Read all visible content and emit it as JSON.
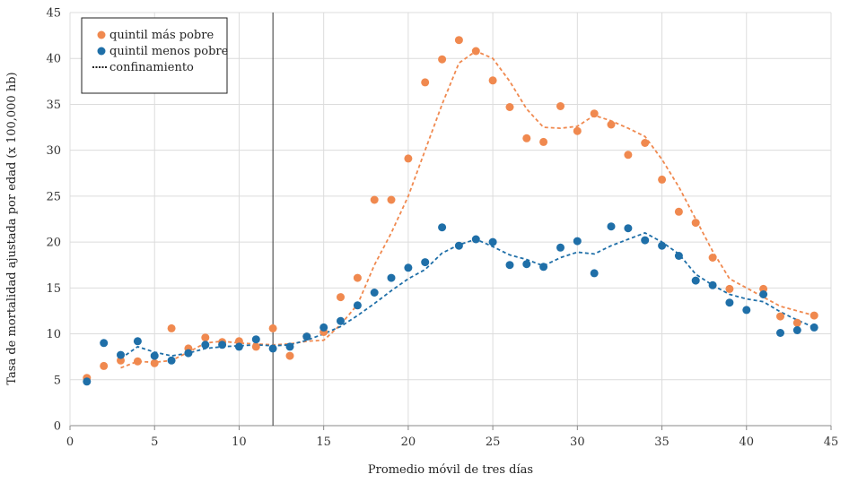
{
  "chart_data": {
    "type": "scatter",
    "xlabel": "Promedio móvil de tres días",
    "ylabel": "Tasa de mortalidad ajustada por edad (x 100,000 hb)",
    "xlim": [
      0,
      45
    ],
    "ylim": [
      0,
      45
    ],
    "xticks": [
      0,
      5,
      10,
      15,
      20,
      25,
      30,
      35,
      40,
      45
    ],
    "yticks": [
      0,
      5,
      10,
      15,
      20,
      25,
      30,
      35,
      40,
      45
    ],
    "grid": true,
    "legend_position": "top-left",
    "vline": {
      "x": 12,
      "label": "confinamiento",
      "color": "#333333"
    },
    "series": [
      {
        "name": "quintil más pobre",
        "color": "#f0894f",
        "points": [
          [
            1,
            5.2
          ],
          [
            2,
            6.5
          ],
          [
            3,
            7.1
          ],
          [
            4,
            7.0
          ],
          [
            5,
            6.8
          ],
          [
            6,
            10.6
          ],
          [
            7,
            8.4
          ],
          [
            8,
            9.6
          ],
          [
            9,
            9.1
          ],
          [
            10,
            9.2
          ],
          [
            11,
            8.6
          ],
          [
            12,
            10.6
          ],
          [
            13,
            7.6
          ],
          [
            14,
            9.7
          ],
          [
            15,
            10.2
          ],
          [
            16,
            14.0
          ],
          [
            17,
            16.1
          ],
          [
            18,
            24.6
          ],
          [
            19,
            24.6
          ],
          [
            20,
            29.1
          ],
          [
            21,
            37.4
          ],
          [
            22,
            39.9
          ],
          [
            23,
            42.0
          ],
          [
            24,
            40.8
          ],
          [
            25,
            37.6
          ],
          [
            26,
            34.7
          ],
          [
            27,
            31.3
          ],
          [
            28,
            30.9
          ],
          [
            29,
            34.8
          ],
          [
            30,
            32.1
          ],
          [
            31,
            34.0
          ],
          [
            32,
            32.8
          ],
          [
            33,
            29.5
          ],
          [
            34,
            30.8
          ],
          [
            35,
            26.8
          ],
          [
            36,
            23.3
          ],
          [
            37,
            22.1
          ],
          [
            38,
            18.3
          ],
          [
            39,
            14.9
          ],
          [
            40,
            null
          ],
          [
            41,
            14.9
          ],
          [
            42,
            11.9
          ],
          [
            43,
            11.2
          ],
          [
            44,
            12.0
          ]
        ],
        "trend": [
          [
            3,
            6.3
          ],
          [
            4,
            7.0
          ],
          [
            5,
            6.9
          ],
          [
            6,
            7.1
          ],
          [
            7,
            8.0
          ],
          [
            8,
            9.0
          ],
          [
            9,
            9.2
          ],
          [
            10,
            9.0
          ],
          [
            11,
            8.9
          ],
          [
            12,
            8.8
          ],
          [
            13,
            8.9
          ],
          [
            14,
            9.2
          ],
          [
            15,
            9.3
          ],
          [
            16,
            11.0
          ],
          [
            17,
            13.2
          ],
          [
            18,
            17.5
          ],
          [
            19,
            21.0
          ],
          [
            20,
            25.0
          ],
          [
            21,
            30.0
          ],
          [
            22,
            35.0
          ],
          [
            23,
            39.5
          ],
          [
            24,
            40.8
          ],
          [
            25,
            40.0
          ],
          [
            26,
            37.5
          ],
          [
            27,
            34.5
          ],
          [
            28,
            32.5
          ],
          [
            29,
            32.4
          ],
          [
            30,
            32.6
          ],
          [
            31,
            33.8
          ],
          [
            32,
            33.2
          ],
          [
            33,
            32.4
          ],
          [
            34,
            31.5
          ],
          [
            35,
            29.0
          ],
          [
            36,
            26.0
          ],
          [
            37,
            22.5
          ],
          [
            38,
            19.0
          ],
          [
            39,
            16.0
          ],
          [
            40,
            15.0
          ],
          [
            41,
            14.0
          ],
          [
            42,
            13.0
          ],
          [
            43,
            12.5
          ],
          [
            44,
            12.0
          ]
        ]
      },
      {
        "name": "quintil menos pobre",
        "color": "#1f6fa8",
        "points": [
          [
            1,
            4.8
          ],
          [
            2,
            9.0
          ],
          [
            3,
            7.7
          ],
          [
            4,
            9.2
          ],
          [
            5,
            7.6
          ],
          [
            6,
            7.1
          ],
          [
            7,
            7.9
          ],
          [
            8,
            8.8
          ],
          [
            9,
            8.8
          ],
          [
            10,
            8.6
          ],
          [
            11,
            9.4
          ],
          [
            12,
            8.4
          ],
          [
            13,
            8.6
          ],
          [
            14,
            9.7
          ],
          [
            15,
            10.7
          ],
          [
            16,
            11.4
          ],
          [
            17,
            13.1
          ],
          [
            18,
            14.5
          ],
          [
            19,
            16.1
          ],
          [
            20,
            17.2
          ],
          [
            21,
            17.8
          ],
          [
            22,
            21.6
          ],
          [
            23,
            19.6
          ],
          [
            24,
            20.3
          ],
          [
            25,
            20.0
          ],
          [
            26,
            17.5
          ],
          [
            27,
            17.6
          ],
          [
            28,
            17.3
          ],
          [
            29,
            19.4
          ],
          [
            30,
            20.1
          ],
          [
            31,
            16.6
          ],
          [
            32,
            21.7
          ],
          [
            33,
            21.5
          ],
          [
            34,
            20.2
          ],
          [
            35,
            19.6
          ],
          [
            36,
            18.5
          ],
          [
            37,
            15.8
          ],
          [
            38,
            15.3
          ],
          [
            39,
            13.4
          ],
          [
            40,
            12.6
          ],
          [
            41,
            14.3
          ],
          [
            42,
            10.1
          ],
          [
            43,
            10.4
          ],
          [
            44,
            10.7
          ]
        ],
        "trend": [
          [
            3,
            7.3
          ],
          [
            4,
            8.6
          ],
          [
            5,
            8.0
          ],
          [
            6,
            7.6
          ],
          [
            7,
            7.9
          ],
          [
            8,
            8.4
          ],
          [
            9,
            8.6
          ],
          [
            10,
            8.7
          ],
          [
            11,
            8.8
          ],
          [
            12,
            8.7
          ],
          [
            13,
            8.8
          ],
          [
            14,
            9.3
          ],
          [
            15,
            10.0
          ],
          [
            16,
            10.8
          ],
          [
            17,
            12.0
          ],
          [
            18,
            13.3
          ],
          [
            19,
            14.7
          ],
          [
            20,
            16.0
          ],
          [
            21,
            17.0
          ],
          [
            22,
            18.8
          ],
          [
            23,
            19.7
          ],
          [
            24,
            20.3
          ],
          [
            25,
            19.5
          ],
          [
            26,
            18.6
          ],
          [
            27,
            18.1
          ],
          [
            28,
            17.4
          ],
          [
            29,
            18.3
          ],
          [
            30,
            18.9
          ],
          [
            31,
            18.7
          ],
          [
            32,
            19.6
          ],
          [
            33,
            20.3
          ],
          [
            34,
            21.0
          ],
          [
            35,
            20.0
          ],
          [
            36,
            18.7
          ],
          [
            37,
            16.5
          ],
          [
            38,
            15.3
          ],
          [
            39,
            14.3
          ],
          [
            40,
            13.8
          ],
          [
            41,
            13.5
          ],
          [
            42,
            12.4
          ],
          [
            43,
            11.5
          ],
          [
            44,
            10.7
          ]
        ]
      }
    ]
  },
  "legend": {
    "items": [
      {
        "label": "quintil más pobre",
        "kind": "dot",
        "color": "#f0894f"
      },
      {
        "label": "quintil menos pobre",
        "kind": "dot",
        "color": "#1f6fa8"
      },
      {
        "label": "confinamiento",
        "kind": "dotted-line",
        "color": "#222222"
      }
    ]
  }
}
